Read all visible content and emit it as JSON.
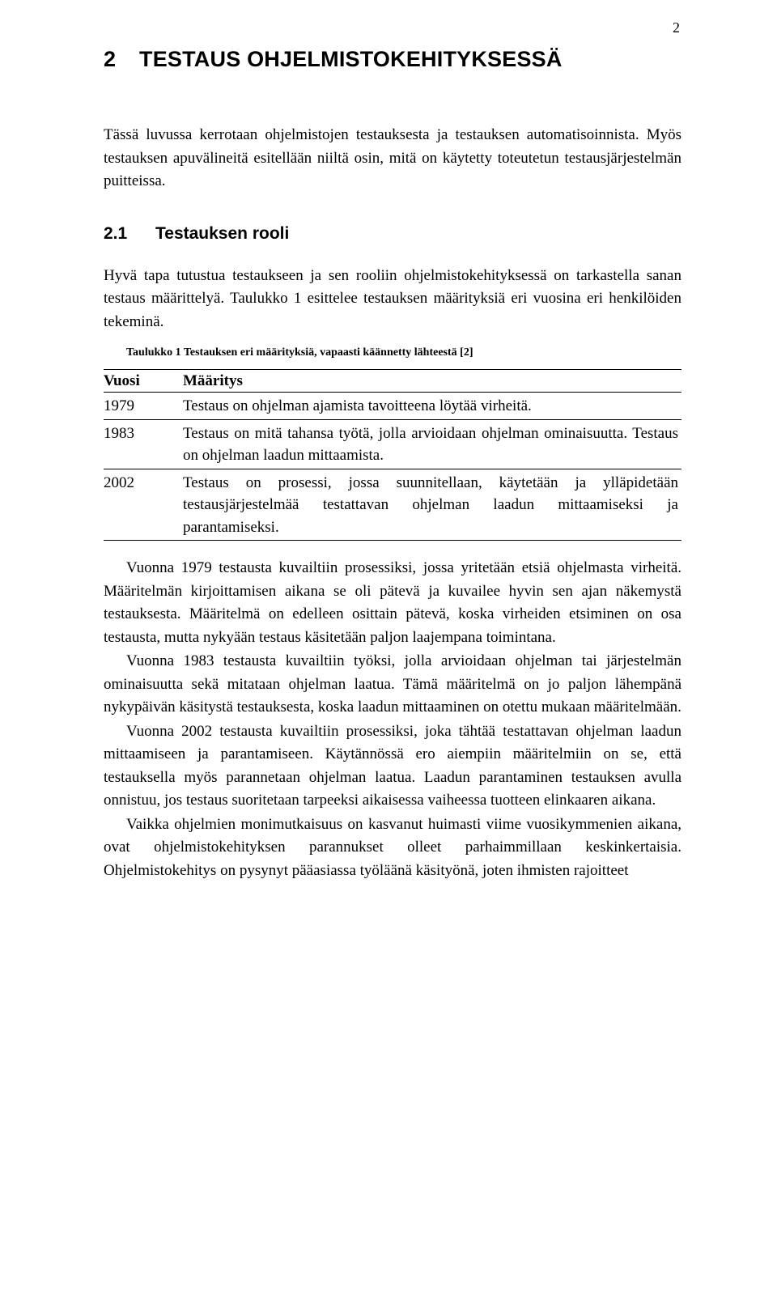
{
  "page_number": "2",
  "chapter": {
    "number": "2",
    "title": "TESTAUS OHJELMISTOKEHITYKSESSÄ"
  },
  "intro": "Tässä luvussa kerrotaan ohjelmistojen testauksesta ja testauksen automatisoinnista. Myös testauksen apuvälineitä esitellään niiltä osin, mitä on käytetty toteutetun testausjärjestelmän puitteissa.",
  "section": {
    "number": "2.1",
    "title": "Testauksen rooli"
  },
  "lead_para": "Hyvä tapa tutustua testaukseen ja sen rooliin ohjelmistokehityksessä on tarkastella sanan testaus määrittelyä. Taulukko 1 esittelee testauksen määrityksiä eri vuosina eri henkilöiden tekeminä.",
  "table": {
    "caption": "Taulukko 1 Testauksen eri määrityksiä, vapaasti käännetty lähteestä [2]",
    "col_year": "Vuosi",
    "col_def": "Määritys",
    "rows": [
      {
        "year": "1979",
        "def": "Testaus on ohjelman ajamista tavoitteena löytää virheitä."
      },
      {
        "year": "1983",
        "def": "Testaus on mitä tahansa työtä, jolla arvioidaan ohjelman ominaisuutta. Testaus on ohjelman laadun mittaamista."
      },
      {
        "year": "2002",
        "def": "Testaus on prosessi, jossa suunnitellaan, käytetään ja ylläpidetään testausjärjestelmää testattavan ohjelman laadun mittaamiseksi ja parantamiseksi."
      }
    ]
  },
  "paras": {
    "p1": "Vuonna 1979 testausta kuvailtiin prosessiksi, jossa yritetään etsiä ohjelmasta virheitä. Määritelmän kirjoittamisen aikana se oli pätevä ja kuvailee hyvin sen ajan näkemystä testauksesta. Määritelmä on edelleen osittain pätevä, koska virheiden etsiminen on osa testausta, mutta nykyään testaus käsitetään paljon laajempana toimintana.",
    "p2": "Vuonna 1983 testausta kuvailtiin työksi, jolla arvioidaan ohjelman tai järjestelmän ominaisuutta sekä mitataan ohjelman laatua. Tämä määritelmä on jo paljon lähempänä nykypäivän käsitystä testauksesta, koska laadun mittaaminen on otettu mukaan määritelmään.",
    "p3": "Vuonna 2002 testausta kuvailtiin prosessiksi, joka tähtää testattavan ohjelman laadun mittaamiseen ja parantamiseen. Käytännössä ero aiempiin määritelmiin on se, että testauksella myös parannetaan ohjelman laatua. Laadun parantaminen testauksen avulla onnistuu, jos testaus suoritetaan tarpeeksi aikaisessa vaiheessa tuotteen elinkaaren aikana.",
    "p4": "Vaikka ohjelmien monimutkaisuus on kasvanut huimasti viime vuosikymmenien aikana, ovat ohjelmistokehityksen parannukset olleet parhaimmillaan keskinkertaisia. Ohjelmistokehitys on pysynyt pääasiassa työläänä käsityönä, joten ihmisten rajoitteet"
  }
}
